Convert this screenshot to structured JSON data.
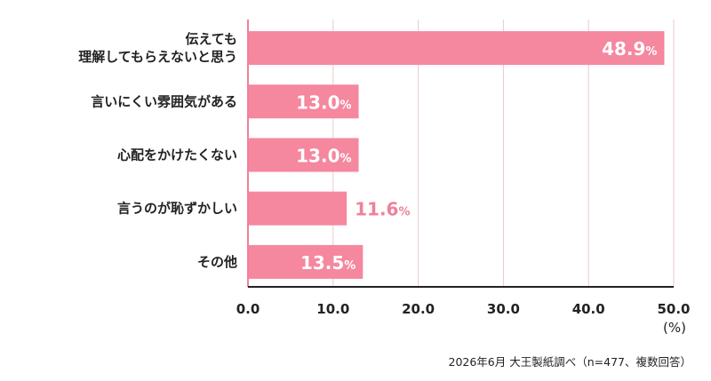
{
  "chart_data": {
    "type": "bar",
    "orientation": "horizontal",
    "categories": [
      [
        "伝えても",
        "理解してもらえないと思う"
      ],
      [
        "言いにくい雰囲気がある"
      ],
      [
        "心配をかけたくない"
      ],
      [
        "言うのが恥ずかしい"
      ],
      [
        "その他"
      ]
    ],
    "values": [
      48.9,
      13.0,
      13.0,
      11.6,
      13.5
    ],
    "value_labels": [
      "48.9",
      "13.0",
      "13.0",
      "11.6",
      "13.5"
    ],
    "value_suffix": "%",
    "x_ticks": [
      "0.0",
      "10.0",
      "20.0",
      "30.0",
      "40.0",
      "50.0"
    ],
    "xlim": [
      0,
      50
    ],
    "unit": "(%)",
    "grid": true,
    "bar_color": "#f5879f"
  },
  "source_note": "2026年6月 大王製紙調べ（n=477、複数回答）"
}
